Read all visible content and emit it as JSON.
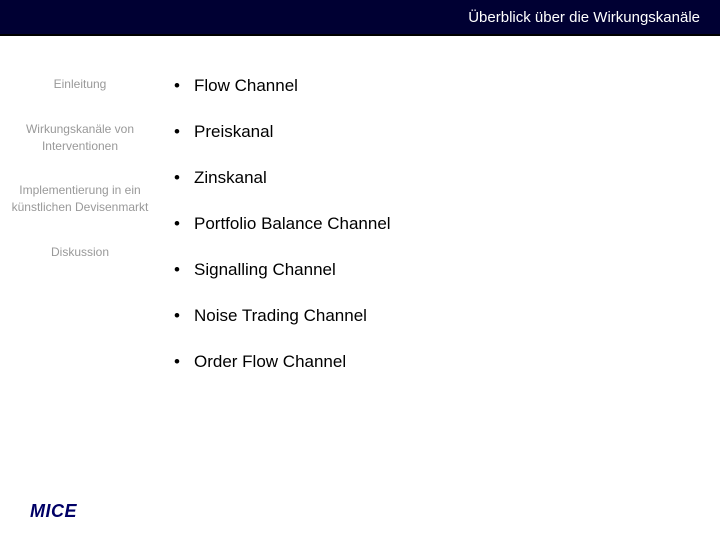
{
  "header": {
    "title": "Überblick über die Wirkungskanäle"
  },
  "sidebar": {
    "items": [
      {
        "label": "Einleitung"
      },
      {
        "label": "Wirkungskanäle von Interventionen"
      },
      {
        "label": "Implementierung in ein künstlichen Devisenmarkt"
      },
      {
        "label": "Diskussion"
      }
    ]
  },
  "main": {
    "bullets": [
      {
        "text": "Flow Channel"
      },
      {
        "text": "Preiskanal"
      },
      {
        "text": "Zinskanal"
      },
      {
        "text": "Portfolio Balance Channel"
      },
      {
        "text": "Signalling Channel"
      },
      {
        "text": "Noise Trading Channel"
      },
      {
        "text": "Order Flow Channel"
      }
    ]
  },
  "footer": {
    "logo": "MICE"
  }
}
